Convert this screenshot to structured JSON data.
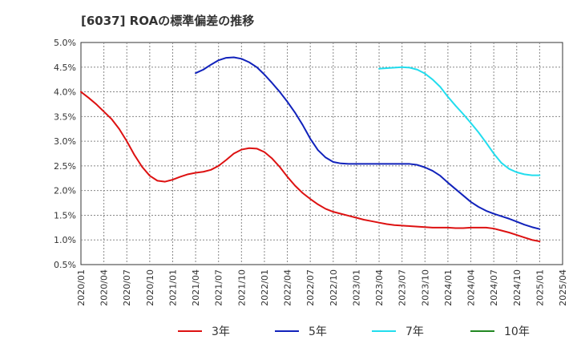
{
  "chart_data": {
    "type": "line",
    "title": "[6037]  ROAの標準偏差の推移",
    "xlabel": "",
    "ylabel": "",
    "ylim": [
      0.5,
      5.0
    ],
    "yticks": [
      "0.5%",
      "1.0%",
      "1.5%",
      "2.0%",
      "2.5%",
      "3.0%",
      "3.5%",
      "4.0%",
      "4.5%",
      "5.0%"
    ],
    "xticks": [
      "2020/01",
      "2020/04",
      "2020/07",
      "2020/10",
      "2021/01",
      "2021/04",
      "2021/07",
      "2021/10",
      "2022/01",
      "2022/04",
      "2022/07",
      "2022/10",
      "2023/01",
      "2023/04",
      "2023/07",
      "2023/10",
      "2024/01",
      "2024/04",
      "2024/07",
      "2024/10",
      "2025/01",
      "2025/04"
    ],
    "grid": true,
    "legend_position": "bottom",
    "series": [
      {
        "name": "3年",
        "color": "#dd1111",
        "points": [
          [
            "2020/01",
            4.0
          ],
          [
            "2020/02",
            3.88
          ],
          [
            "2020/03",
            3.75
          ],
          [
            "2020/04",
            3.6
          ],
          [
            "2020/05",
            3.45
          ],
          [
            "2020/06",
            3.25
          ],
          [
            "2020/07",
            3.0
          ],
          [
            "2020/08",
            2.72
          ],
          [
            "2020/09",
            2.48
          ],
          [
            "2020/10",
            2.3
          ],
          [
            "2020/11",
            2.2
          ],
          [
            "2020/12",
            2.18
          ],
          [
            "2021/01",
            2.22
          ],
          [
            "2021/02",
            2.28
          ],
          [
            "2021/03",
            2.33
          ],
          [
            "2021/04",
            2.36
          ],
          [
            "2021/05",
            2.38
          ],
          [
            "2021/06",
            2.42
          ],
          [
            "2021/07",
            2.5
          ],
          [
            "2021/08",
            2.62
          ],
          [
            "2021/09",
            2.75
          ],
          [
            "2021/10",
            2.83
          ],
          [
            "2021/11",
            2.86
          ],
          [
            "2021/12",
            2.85
          ],
          [
            "2022/01",
            2.78
          ],
          [
            "2022/02",
            2.65
          ],
          [
            "2022/03",
            2.48
          ],
          [
            "2022/04",
            2.28
          ],
          [
            "2022/05",
            2.1
          ],
          [
            "2022/06",
            1.95
          ],
          [
            "2022/07",
            1.83
          ],
          [
            "2022/08",
            1.72
          ],
          [
            "2022/09",
            1.63
          ],
          [
            "2022/10",
            1.57
          ],
          [
            "2022/11",
            1.53
          ],
          [
            "2022/12",
            1.49
          ],
          [
            "2023/01",
            1.45
          ],
          [
            "2023/02",
            1.41
          ],
          [
            "2023/03",
            1.38
          ],
          [
            "2023/04",
            1.35
          ],
          [
            "2023/05",
            1.32
          ],
          [
            "2023/06",
            1.3
          ],
          [
            "2023/07",
            1.29
          ],
          [
            "2023/08",
            1.28
          ],
          [
            "2023/09",
            1.27
          ],
          [
            "2023/10",
            1.26
          ],
          [
            "2023/11",
            1.25
          ],
          [
            "2023/12",
            1.25
          ],
          [
            "2024/01",
            1.25
          ],
          [
            "2024/02",
            1.24
          ],
          [
            "2024/03",
            1.24
          ],
          [
            "2024/04",
            1.25
          ],
          [
            "2024/05",
            1.25
          ],
          [
            "2024/06",
            1.25
          ],
          [
            "2024/07",
            1.23
          ],
          [
            "2024/08",
            1.19
          ],
          [
            "2024/09",
            1.15
          ],
          [
            "2024/10",
            1.1
          ],
          [
            "2024/11",
            1.05
          ],
          [
            "2024/12",
            1.0
          ],
          [
            "2025/01",
            0.97
          ]
        ]
      },
      {
        "name": "5年",
        "color": "#1122bb",
        "points": [
          [
            "2021/04",
            4.38
          ],
          [
            "2021/05",
            4.45
          ],
          [
            "2021/06",
            4.55
          ],
          [
            "2021/07",
            4.64
          ],
          [
            "2021/08",
            4.69
          ],
          [
            "2021/09",
            4.7
          ],
          [
            "2021/10",
            4.67
          ],
          [
            "2021/11",
            4.6
          ],
          [
            "2021/12",
            4.5
          ],
          [
            "2022/01",
            4.35
          ],
          [
            "2022/02",
            4.18
          ],
          [
            "2022/03",
            4.0
          ],
          [
            "2022/04",
            3.8
          ],
          [
            "2022/05",
            3.58
          ],
          [
            "2022/06",
            3.33
          ],
          [
            "2022/07",
            3.05
          ],
          [
            "2022/08",
            2.82
          ],
          [
            "2022/09",
            2.67
          ],
          [
            "2022/10",
            2.58
          ],
          [
            "2022/11",
            2.55
          ],
          [
            "2022/12",
            2.54
          ],
          [
            "2023/01",
            2.54
          ],
          [
            "2023/02",
            2.54
          ],
          [
            "2023/03",
            2.54
          ],
          [
            "2023/04",
            2.54
          ],
          [
            "2023/05",
            2.54
          ],
          [
            "2023/06",
            2.54
          ],
          [
            "2023/07",
            2.54
          ],
          [
            "2023/08",
            2.54
          ],
          [
            "2023/09",
            2.52
          ],
          [
            "2023/10",
            2.47
          ],
          [
            "2023/11",
            2.4
          ],
          [
            "2023/12",
            2.3
          ],
          [
            "2024/01",
            2.16
          ],
          [
            "2024/02",
            2.03
          ],
          [
            "2024/03",
            1.9
          ],
          [
            "2024/04",
            1.77
          ],
          [
            "2024/05",
            1.67
          ],
          [
            "2024/06",
            1.59
          ],
          [
            "2024/07",
            1.53
          ],
          [
            "2024/08",
            1.48
          ],
          [
            "2024/09",
            1.43
          ],
          [
            "2024/10",
            1.37
          ],
          [
            "2024/11",
            1.31
          ],
          [
            "2024/12",
            1.26
          ],
          [
            "2025/01",
            1.22
          ]
        ]
      },
      {
        "name": "7年",
        "color": "#22ddee",
        "points": [
          [
            "2023/04",
            4.47
          ],
          [
            "2023/05",
            4.48
          ],
          [
            "2023/06",
            4.49
          ],
          [
            "2023/07",
            4.5
          ],
          [
            "2023/08",
            4.49
          ],
          [
            "2023/09",
            4.45
          ],
          [
            "2023/10",
            4.37
          ],
          [
            "2023/11",
            4.25
          ],
          [
            "2023/12",
            4.1
          ],
          [
            "2024/01",
            3.9
          ],
          [
            "2024/02",
            3.72
          ],
          [
            "2024/03",
            3.55
          ],
          [
            "2024/04",
            3.37
          ],
          [
            "2024/05",
            3.18
          ],
          [
            "2024/06",
            2.97
          ],
          [
            "2024/07",
            2.75
          ],
          [
            "2024/08",
            2.56
          ],
          [
            "2024/09",
            2.44
          ],
          [
            "2024/10",
            2.37
          ],
          [
            "2024/11",
            2.33
          ],
          [
            "2024/12",
            2.31
          ],
          [
            "2025/01",
            2.31
          ]
        ]
      },
      {
        "name": "10年",
        "color": "#228822",
        "points": []
      }
    ]
  }
}
